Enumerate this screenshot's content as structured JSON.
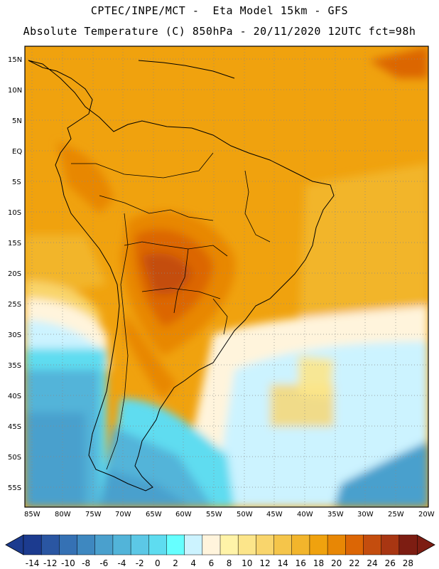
{
  "header": {
    "line1": "CPTEC/INPE/MCT -  Eta Model 15km - GFS",
    "line2": "Absolute Temperature (C) 850hPa - 20/11/2020 12UTC fct=98h"
  },
  "axes": {
    "lat_labels": [
      "15N",
      "10N",
      "5N",
      "EQ",
      "5S",
      "10S",
      "15S",
      "20S",
      "25S",
      "30S",
      "35S",
      "40S",
      "45S",
      "50S",
      "55S"
    ],
    "lon_labels": [
      "85W",
      "80W",
      "75W",
      "70W",
      "65W",
      "60W",
      "55W",
      "50W",
      "45W",
      "40W",
      "35W",
      "30W",
      "25W",
      "20W"
    ]
  },
  "colorbar": {
    "tick_labels": [
      "-14",
      "-12",
      "-10",
      "-8",
      "-6",
      "-4",
      "-2",
      "0",
      "2",
      "4",
      "6",
      "8",
      "10",
      "12",
      "14",
      "16",
      "18",
      "20",
      "22",
      "24",
      "26",
      "28"
    ],
    "colors": [
      "#1c3b8f",
      "#2a56a2",
      "#3571b4",
      "#3e88c0",
      "#4aa0cd",
      "#52b4d9",
      "#5cc8e6",
      "#5edcf0",
      "#66ffff",
      "#ccf3ff",
      "#fff4dc",
      "#fff3a8",
      "#fce58a",
      "#f9d56c",
      "#f5c54a",
      "#f2b52c",
      "#f0a20e",
      "#e88705",
      "#dc6605",
      "#c44d0e",
      "#a83612",
      "#7d1d12"
    ]
  },
  "chart_data": {
    "type": "heatmap",
    "title": "Absolute Temperature (C) 850hPa - 20/11/2020 12UTC fct=98h",
    "model": "Eta Model 15km - GFS",
    "variable": "Absolute Temperature",
    "units": "C",
    "level": "850hPa",
    "valid_run": "20/11/2020 12UTC",
    "forecast": "fct=98h",
    "lon_range": [
      -85,
      -20
    ],
    "lat_range": [
      -57,
      17
    ],
    "color_scale_range": [
      -14,
      28
    ]
  }
}
